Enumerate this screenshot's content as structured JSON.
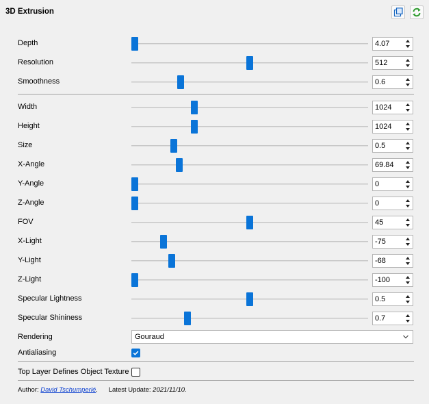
{
  "header": {
    "title": "3D Extrusion"
  },
  "toolbar": {
    "copy_icon": "copy-window-icon",
    "refresh_icon": "refresh-icon"
  },
  "group1": [
    {
      "label": "Depth",
      "value": "4.07",
      "fraction": 0.0
    },
    {
      "label": "Resolution",
      "value": "512",
      "fraction": 0.5
    },
    {
      "label": "Smoothness",
      "value": "0.6",
      "fraction": 0.2
    }
  ],
  "group2": [
    {
      "label": "Width",
      "value": "1024",
      "fraction": 0.26
    },
    {
      "label": "Height",
      "value": "1024",
      "fraction": 0.26
    },
    {
      "label": "Size",
      "value": "0.5",
      "fraction": 0.17
    },
    {
      "label": "X-Angle",
      "value": "69.84",
      "fraction": 0.194
    },
    {
      "label": "Y-Angle",
      "value": "0",
      "fraction": 0.0
    },
    {
      "label": "Z-Angle",
      "value": "0",
      "fraction": 0.0
    },
    {
      "label": "FOV",
      "value": "45",
      "fraction": 0.5
    },
    {
      "label": "X-Light",
      "value": "-75",
      "fraction": 0.125
    },
    {
      "label": "Y-Light",
      "value": "-68",
      "fraction": 0.16
    },
    {
      "label": "Z-Light",
      "value": "-100",
      "fraction": 0.0
    },
    {
      "label": "Specular Lightness",
      "value": "0.5",
      "fraction": 0.5
    },
    {
      "label": "Specular Shininess",
      "value": "0.7",
      "fraction": 0.23
    }
  ],
  "rendering": {
    "label": "Rendering",
    "value": "Gouraud"
  },
  "antialiasing": {
    "label": "Antialiasing",
    "checked": true
  },
  "top_layer": {
    "label": "Top Layer Defines Object Texture",
    "checked": false
  },
  "footer": {
    "author_label": "Author:",
    "author_name": "David Tschumperlé",
    "author_suffix": ".",
    "update_label": "Latest Update:",
    "update_date": "2021/11/10."
  }
}
